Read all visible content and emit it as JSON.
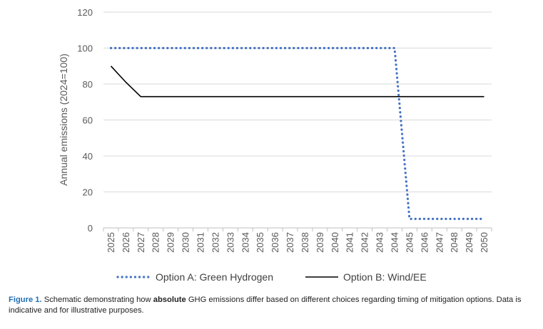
{
  "chart_data": {
    "type": "line",
    "ylabel": "Annual emissions (2024=100)",
    "xlabel": "",
    "ylim": [
      0,
      120
    ],
    "yticks": [
      0,
      20,
      40,
      60,
      80,
      100,
      120
    ],
    "grid": true,
    "legend_position": "bottom",
    "x": [
      "2025",
      "2026",
      "2027",
      "2028",
      "2029",
      "2030",
      "2031",
      "2032",
      "2033",
      "2034",
      "2035",
      "2036",
      "2037",
      "2038",
      "2039",
      "2040",
      "2041",
      "2042",
      "2043",
      "2044",
      "2045",
      "2046",
      "2047",
      "2048",
      "2049",
      "2050"
    ],
    "series": [
      {
        "name": "Option A: Green Hydrogen",
        "style": "dotted",
        "color": "#4472c4",
        "values": [
          100,
          100,
          100,
          100,
          100,
          100,
          100,
          100,
          100,
          100,
          100,
          100,
          100,
          100,
          100,
          100,
          100,
          100,
          100,
          100,
          5,
          5,
          5,
          5,
          5,
          5
        ]
      },
      {
        "name": "Option B: Wind/EE",
        "style": "solid",
        "color": "#000000",
        "values": [
          90,
          81,
          73,
          73,
          73,
          73,
          73,
          73,
          73,
          73,
          73,
          73,
          73,
          73,
          73,
          73,
          73,
          73,
          73,
          73,
          73,
          73,
          73,
          73,
          73,
          73
        ]
      }
    ]
  },
  "caption": {
    "label": "Figure 1.",
    "text_before": " Schematic demonstrating how ",
    "bold": "absolute",
    "text_after": " GHG emissions differ based on different choices regarding timing of mitigation options. Data is indicative and for illustrative purposes."
  }
}
